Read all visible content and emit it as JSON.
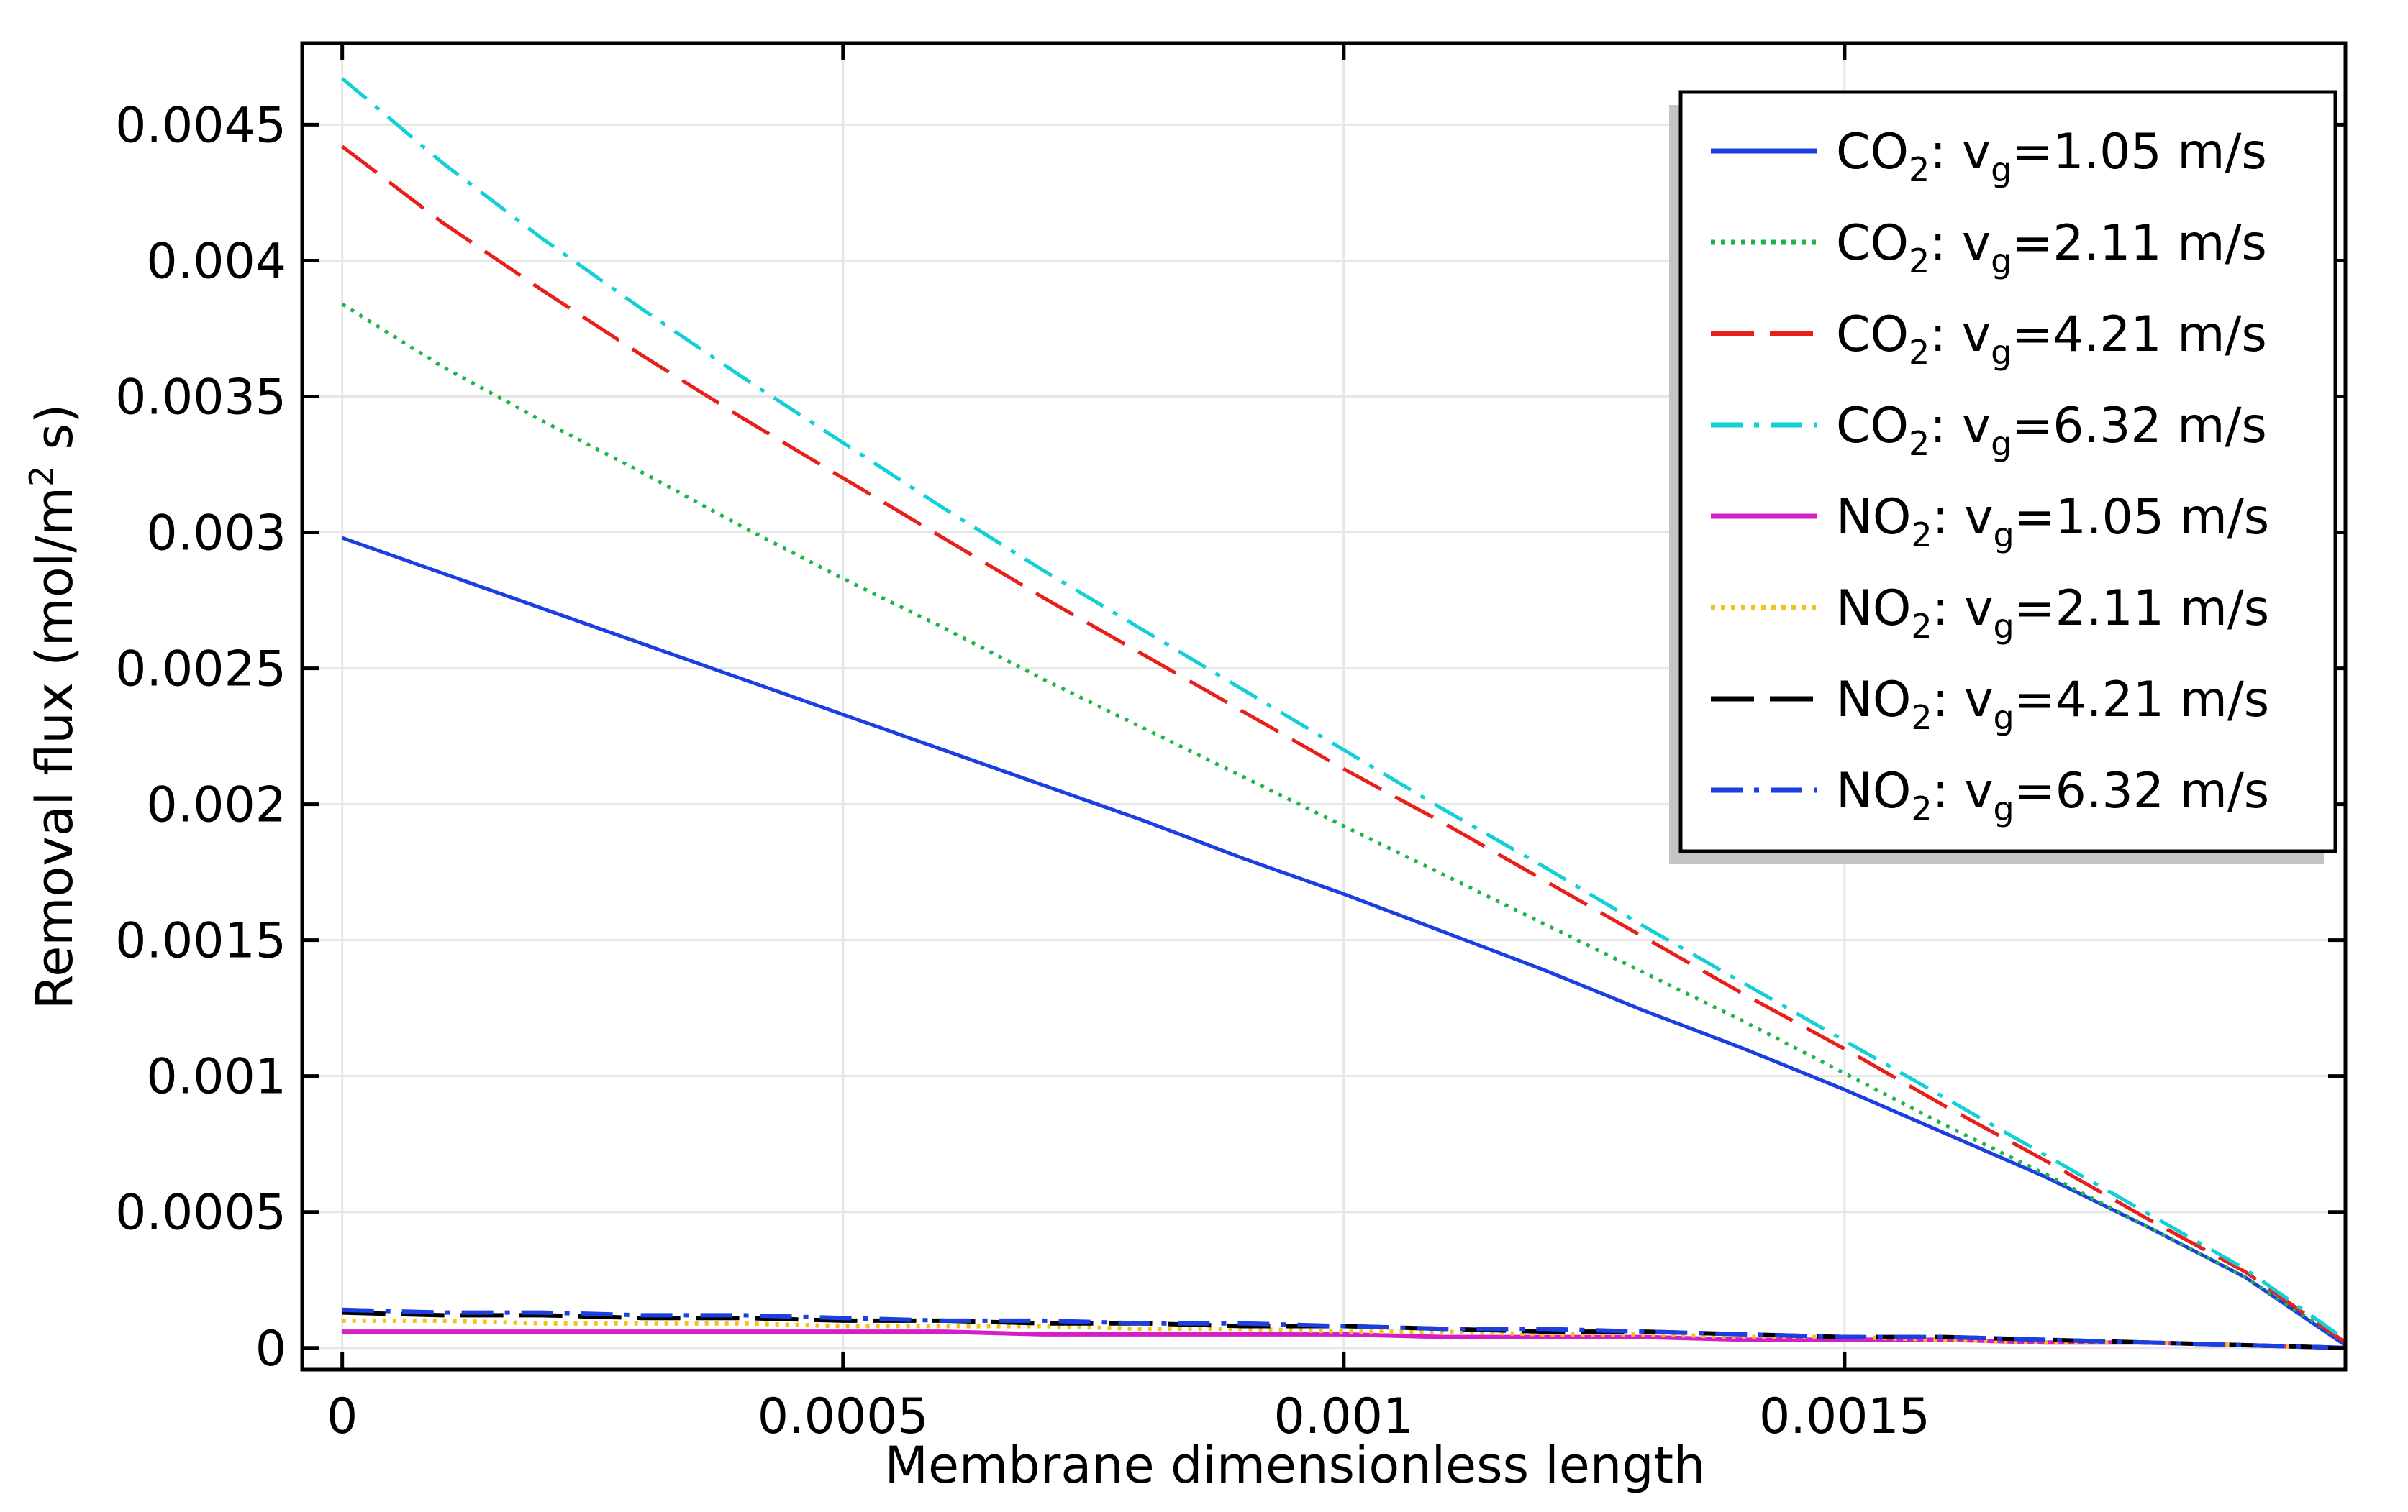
{
  "chart_data": {
    "type": "line",
    "title": "",
    "xlabel": "Membrane dimensionless length",
    "ylabel": {
      "before": "Removal flux (mol/m",
      "superscript": "2",
      "after": " s)"
    },
    "xlim": [
      -4e-05,
      0.002
    ],
    "ylim": [
      -8e-05,
      0.0048
    ],
    "grid": true,
    "legend_position": "top-right",
    "x_ticks": [
      {
        "value": 0,
        "label": "0"
      },
      {
        "value": 0.0005,
        "label": "0.0005"
      },
      {
        "value": 0.001,
        "label": "0.001"
      },
      {
        "value": 0.0015,
        "label": "0.0015"
      }
    ],
    "y_ticks": [
      {
        "value": 0,
        "label": "0"
      },
      {
        "value": 0.0005,
        "label": "0.0005"
      },
      {
        "value": 0.001,
        "label": "0.001"
      },
      {
        "value": 0.0015,
        "label": "0.0015"
      },
      {
        "value": 0.002,
        "label": "0.002"
      },
      {
        "value": 0.0025,
        "label": "0.0025"
      },
      {
        "value": 0.003,
        "label": "0.003"
      },
      {
        "value": 0.0035,
        "label": "0.0035"
      },
      {
        "value": 0.004,
        "label": "0.004"
      },
      {
        "value": 0.0045,
        "label": "0.0045"
      }
    ],
    "x": [
      0,
      0.0001,
      0.0002,
      0.0003,
      0.0004,
      0.0005,
      0.0006,
      0.0007,
      0.0008,
      0.0009,
      0.001,
      0.0011,
      0.0012,
      0.0013,
      0.0014,
      0.0015,
      0.0016,
      0.0017,
      0.0018,
      0.0019,
      0.002
    ],
    "series": [
      {
        "name": "CO2: vg=1.05 m/s",
        "species": "CO",
        "species_sub": "2",
        "velocity_label": "=1.05 m/s",
        "color": "#1b3fe0",
        "dash": "solid",
        "values": [
          0.00298,
          0.00285,
          0.00272,
          0.00259,
          0.00246,
          0.00233,
          0.0022,
          0.00207,
          0.00194,
          0.0018,
          0.00167,
          0.00153,
          0.00139,
          0.00124,
          0.0011,
          0.00095,
          0.00079,
          0.00063,
          0.00045,
          0.00026,
          1e-05
        ]
      },
      {
        "name": "CO2: vg=2.11 m/s",
        "species": "CO",
        "species_sub": "2",
        "velocity_label": "=2.11 m/s",
        "color": "#1db54a",
        "dash": "dotted",
        "values": [
          0.00384,
          0.00361,
          0.00341,
          0.00322,
          0.00302,
          0.00283,
          0.00265,
          0.00246,
          0.00228,
          0.0021,
          0.00192,
          0.00174,
          0.00156,
          0.00138,
          0.0012,
          0.00101,
          0.00082,
          0.00064,
          0.00045,
          0.00026,
          2e-05
        ]
      },
      {
        "name": "CO2: vg=4.21 m/s",
        "species": "CO",
        "species_sub": "2",
        "velocity_label": "=4.21 m/s",
        "color": "#e8201c",
        "dash": "dashed",
        "values": [
          0.00442,
          0.00414,
          0.00389,
          0.00365,
          0.00342,
          0.0032,
          0.00298,
          0.00276,
          0.00255,
          0.00234,
          0.00213,
          0.00193,
          0.00172,
          0.00151,
          0.0013,
          0.0011,
          0.00089,
          0.00069,
          0.00048,
          0.00028,
          2e-05
        ]
      },
      {
        "name": "CO2: vg=6.32 m/s",
        "species": "CO",
        "species_sub": "2",
        "velocity_label": "=6.32 m/s",
        "color": "#12d0d6",
        "dash": "dashdot",
        "values": [
          0.00467,
          0.00436,
          0.00408,
          0.00382,
          0.00357,
          0.00333,
          0.00309,
          0.00286,
          0.00264,
          0.00242,
          0.0022,
          0.00198,
          0.00177,
          0.00155,
          0.00134,
          0.00113,
          0.00092,
          0.00071,
          0.0005,
          0.00029,
          3e-05
        ]
      },
      {
        "name": "NO2: vg=1.05 m/s",
        "species": "NO",
        "species_sub": "2",
        "velocity_label": "=1.05 m/s",
        "color": "#d41fc9",
        "dash": "solid",
        "values": [
          6e-05,
          6e-05,
          6e-05,
          6e-05,
          6e-05,
          6e-05,
          6e-05,
          5e-05,
          5e-05,
          5e-05,
          5e-05,
          4e-05,
          4e-05,
          4e-05,
          3e-05,
          3e-05,
          3e-05,
          2e-05,
          2e-05,
          1e-05,
          0
        ]
      },
      {
        "name": "NO2: vg=2.11 m/s",
        "species": "NO",
        "species_sub": "2",
        "velocity_label": "=2.11 m/s",
        "color": "#f3c21b",
        "dash": "dotted",
        "values": [
          0.0001,
          0.0001,
          9e-05,
          9e-05,
          9e-05,
          8e-05,
          8e-05,
          8e-05,
          7e-05,
          7e-05,
          6e-05,
          6e-05,
          5e-05,
          5e-05,
          4e-05,
          4e-05,
          3e-05,
          2e-05,
          2e-05,
          1e-05,
          0
        ]
      },
      {
        "name": "NO2: vg=4.21 m/s",
        "species": "NO",
        "species_sub": "2",
        "velocity_label": "=4.21 m/s",
        "color": "#000000",
        "dash": "dashed",
        "values": [
          0.00013,
          0.00012,
          0.00012,
          0.00011,
          0.00011,
          0.0001,
          0.0001,
          9e-05,
          9e-05,
          8e-05,
          8e-05,
          7e-05,
          6e-05,
          6e-05,
          5e-05,
          4e-05,
          4e-05,
          3e-05,
          2e-05,
          1e-05,
          0
        ]
      },
      {
        "name": "NO2: vg=6.32 m/s",
        "species": "NO",
        "species_sub": "2",
        "velocity_label": "=6.32 m/s",
        "color": "#1b3fe0",
        "dash": "dashdot",
        "values": [
          0.00014,
          0.00013,
          0.00013,
          0.00012,
          0.00012,
          0.00011,
          0.0001,
          0.0001,
          9e-05,
          9e-05,
          8e-05,
          7e-05,
          7e-05,
          6e-05,
          5e-05,
          4e-05,
          4e-05,
          3e-05,
          2e-05,
          1e-05,
          0
        ]
      }
    ],
    "legend_subscript": "g",
    "legend_prefix": "v"
  }
}
